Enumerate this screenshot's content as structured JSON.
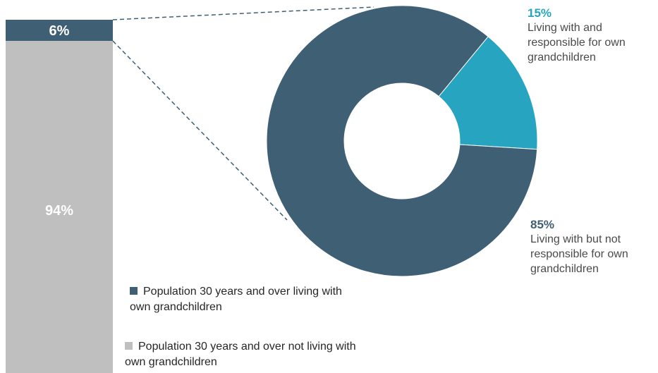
{
  "chart_data": [
    {
      "type": "bar",
      "stacked": true,
      "segments": [
        {
          "label": "6%",
          "value": 6,
          "color": "#3f5f74"
        },
        {
          "label": "94%",
          "value": 94,
          "color": "#bfbfbf"
        }
      ]
    },
    {
      "type": "pie",
      "donut": true,
      "slices": [
        {
          "label": "15%",
          "value": 15,
          "description": "Living with and responsible for own grandchildren",
          "color": "#27a5c0"
        },
        {
          "label": "85%",
          "value": 85,
          "description": "Living with but not responsible for own grandchildren",
          "color": "#3f5f74"
        }
      ]
    }
  ],
  "legend": [
    {
      "label": "Population 30 years and over living with own grandchildren",
      "color": "#3f5f74"
    },
    {
      "label": "Population 30 years and over not living with own grandchildren",
      "color": "#bfbfbf"
    }
  ]
}
